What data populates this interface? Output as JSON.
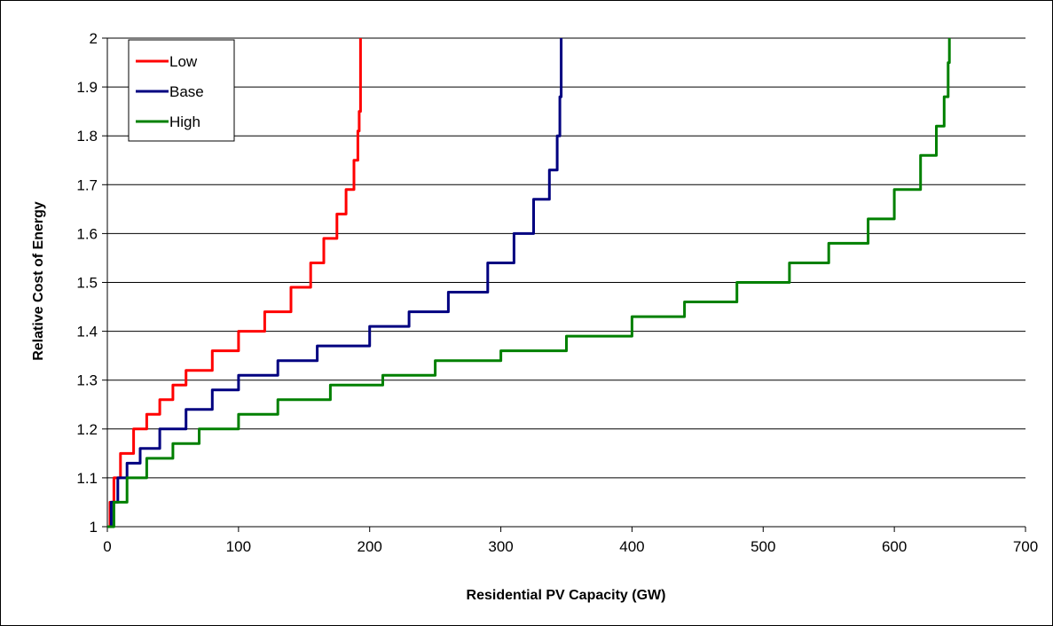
{
  "chart_data": {
    "type": "line",
    "title": "",
    "xlabel": "Residential PV Capacity (GW)",
    "ylabel": "Relative Cost of Energy",
    "xlim": [
      0,
      700
    ],
    "ylim": [
      1,
      2
    ],
    "x_ticks": [
      0,
      100,
      200,
      300,
      400,
      500,
      600,
      700
    ],
    "y_ticks": [
      1,
      1.1,
      1.2,
      1.3,
      1.4,
      1.5,
      1.6,
      1.7,
      1.8,
      1.9,
      2
    ],
    "x_tick_labels": [
      "0",
      "100",
      "200",
      "300",
      "400",
      "500",
      "600",
      "700"
    ],
    "y_tick_labels": [
      "1",
      "1.1",
      "1.2",
      "1.3",
      "1.4",
      "1.5",
      "1.6",
      "1.7",
      "1.8",
      "1.9",
      "2"
    ],
    "grid": "horizontal",
    "legend_position": "top-left",
    "series": [
      {
        "name": "Low",
        "color": "#ff0000",
        "points": [
          [
            0,
            1.0
          ],
          [
            2,
            1.05
          ],
          [
            5,
            1.1
          ],
          [
            10,
            1.15
          ],
          [
            20,
            1.2
          ],
          [
            30,
            1.23
          ],
          [
            40,
            1.26
          ],
          [
            50,
            1.29
          ],
          [
            60,
            1.32
          ],
          [
            80,
            1.36
          ],
          [
            100,
            1.4
          ],
          [
            120,
            1.44
          ],
          [
            140,
            1.49
          ],
          [
            155,
            1.54
          ],
          [
            165,
            1.59
          ],
          [
            175,
            1.64
          ],
          [
            182,
            1.69
          ],
          [
            188,
            1.75
          ],
          [
            191,
            1.81
          ],
          [
            192,
            1.85
          ],
          [
            193,
            2.0
          ]
        ]
      },
      {
        "name": "Base",
        "color": "#000080",
        "points": [
          [
            0,
            1.0
          ],
          [
            3,
            1.05
          ],
          [
            8,
            1.1
          ],
          [
            15,
            1.13
          ],
          [
            25,
            1.16
          ],
          [
            40,
            1.2
          ],
          [
            60,
            1.24
          ],
          [
            80,
            1.28
          ],
          [
            100,
            1.31
          ],
          [
            130,
            1.34
          ],
          [
            160,
            1.37
          ],
          [
            200,
            1.41
          ],
          [
            230,
            1.44
          ],
          [
            260,
            1.48
          ],
          [
            290,
            1.54
          ],
          [
            310,
            1.6
          ],
          [
            325,
            1.67
          ],
          [
            337,
            1.73
          ],
          [
            343,
            1.8
          ],
          [
            345,
            1.88
          ],
          [
            346,
            2.0
          ]
        ]
      },
      {
        "name": "High",
        "color": "#008000",
        "points": [
          [
            0,
            1.0
          ],
          [
            5,
            1.05
          ],
          [
            15,
            1.1
          ],
          [
            30,
            1.14
          ],
          [
            50,
            1.17
          ],
          [
            70,
            1.2
          ],
          [
            100,
            1.23
          ],
          [
            130,
            1.26
          ],
          [
            170,
            1.29
          ],
          [
            210,
            1.31
          ],
          [
            250,
            1.34
          ],
          [
            300,
            1.36
          ],
          [
            350,
            1.39
          ],
          [
            400,
            1.43
          ],
          [
            440,
            1.46
          ],
          [
            480,
            1.5
          ],
          [
            520,
            1.54
          ],
          [
            550,
            1.58
          ],
          [
            580,
            1.63
          ],
          [
            600,
            1.69
          ],
          [
            620,
            1.76
          ],
          [
            632,
            1.82
          ],
          [
            638,
            1.88
          ],
          [
            641,
            1.95
          ],
          [
            642,
            2.0
          ]
        ]
      }
    ]
  }
}
